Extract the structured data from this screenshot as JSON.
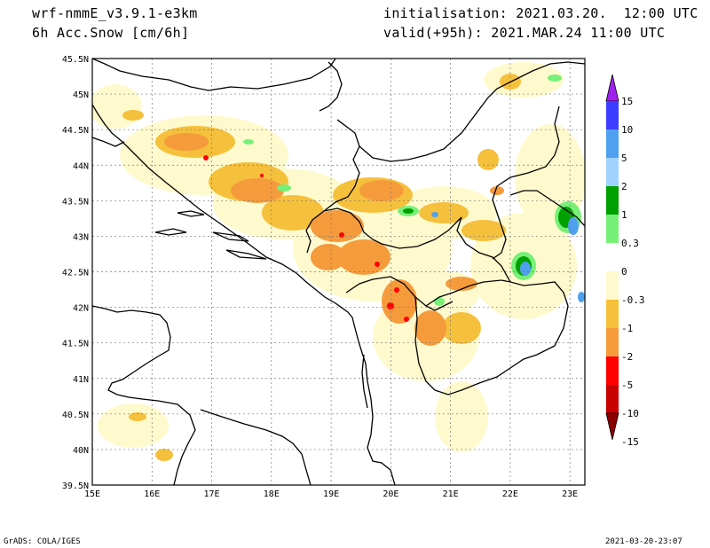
{
  "header": {
    "model": "wrf-nmmE_v3.9.1-e3km",
    "field": "6h Acc.Snow [cm/6h]",
    "init": "initialisation: 2021.03.20.  12:00 UTC",
    "valid": "valid(+95h): 2021.MAR.24 11:00 UTC"
  },
  "footer": {
    "left": "GrADS: COLA/IGES",
    "right": "2021-03-20-23:07"
  },
  "map": {
    "lon_ticks": [
      "15E",
      "16E",
      "17E",
      "18E",
      "19E",
      "20E",
      "21E",
      "22E",
      "23E"
    ],
    "lat_ticks": [
      "45.5N",
      "45N",
      "44.5N",
      "44N",
      "43.5N",
      "43N",
      "42.5N",
      "42N",
      "41.5N",
      "41N",
      "40.5N",
      "40N",
      "39.5N"
    ],
    "lon_range": [
      15,
      23.25
    ],
    "lat_range": [
      39.5,
      45.5
    ]
  },
  "colorbar": {
    "labels": [
      "15",
      "10",
      "5",
      "2",
      "1",
      "0.3",
      "0",
      "-0.3",
      "-1",
      "-2",
      "-5",
      "-10",
      "-15"
    ],
    "colors": [
      "#a020f0",
      "#3c3cff",
      "#50a0f0",
      "#a0d2ff",
      "#00a000",
      "#78f078",
      "#ffffff",
      "#fffacd",
      "#f5c03c",
      "#f59b3c",
      "#ff0000",
      "#c80000",
      "#8b0000"
    ]
  }
}
